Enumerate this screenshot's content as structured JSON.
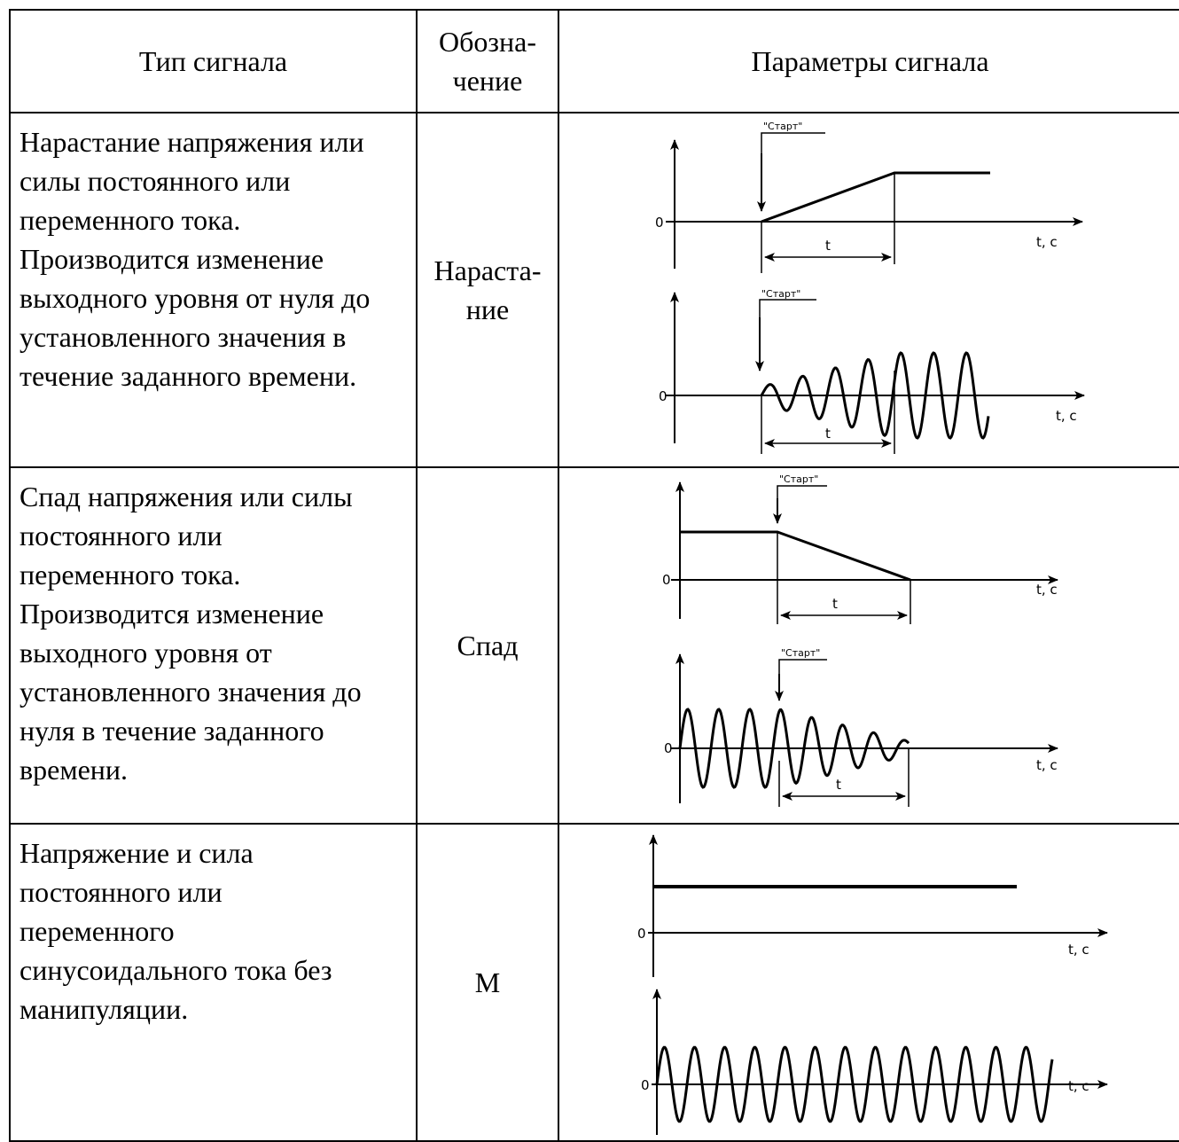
{
  "header": {
    "type_col": "Тип сигнала",
    "code_col": "Обозна-\nчение",
    "params_col": "Параметры сигнала"
  },
  "rows": [
    {
      "description": "Нарастание напряжения или\nсилы постоянного или\nпеременного тока.\nПроизводится изменение\nвыходного уровня от нуля до\nустановленного значения в\nтечение заданного времени.",
      "code": "Нараста-\nние"
    },
    {
      "description": "Спад напряжения или силы\nпостоянного или\nпеременного тока.\nПроизводится изменение\nвыходного уровня от\nустановленного значения до\nнуля в течение заданного\nвремени.",
      "code": "Спад"
    },
    {
      "description": "Напряжение и сила\nпостоянного или\nпеременного\nсинусоидального тока без\nманипуляции.",
      "code": "М"
    }
  ],
  "graph_labels": {
    "zero": "0",
    "time_axis": "t, с",
    "start": "\"Старт\"",
    "duration": "t"
  }
}
